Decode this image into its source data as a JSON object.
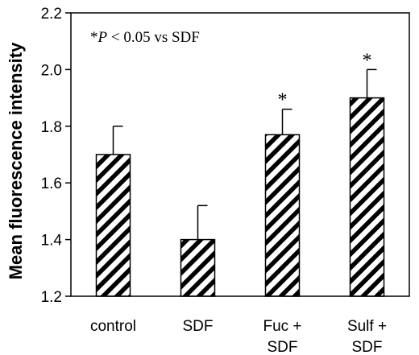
{
  "chart_data": {
    "type": "bar",
    "categories": [
      [
        "control"
      ],
      [
        "SDF"
      ],
      [
        "Fuc +",
        "SDF"
      ],
      [
        "Sulf +",
        "SDF"
      ]
    ],
    "values": [
      1.7,
      1.4,
      1.77,
      1.9
    ],
    "errors": [
      0.1,
      0.12,
      0.09,
      0.1
    ],
    "significant": [
      false,
      false,
      true,
      true
    ],
    "significance_marker": "*",
    "ylabel": "Mean fluorescence intensity",
    "ylim": [
      1.2,
      2.2
    ],
    "yticks": [
      "1.2",
      "1.4",
      "1.6",
      "1.8",
      "2.0",
      "2.2"
    ],
    "annotation": {
      "prefix": "*",
      "italic": "P",
      "rest": " < 0.05 vs SDF"
    },
    "bar_fill": "diagonal-hatch",
    "grid": false,
    "colors": {
      "bar_stroke": "#000000",
      "hatch": "#000000",
      "background": "#ffffff"
    }
  }
}
